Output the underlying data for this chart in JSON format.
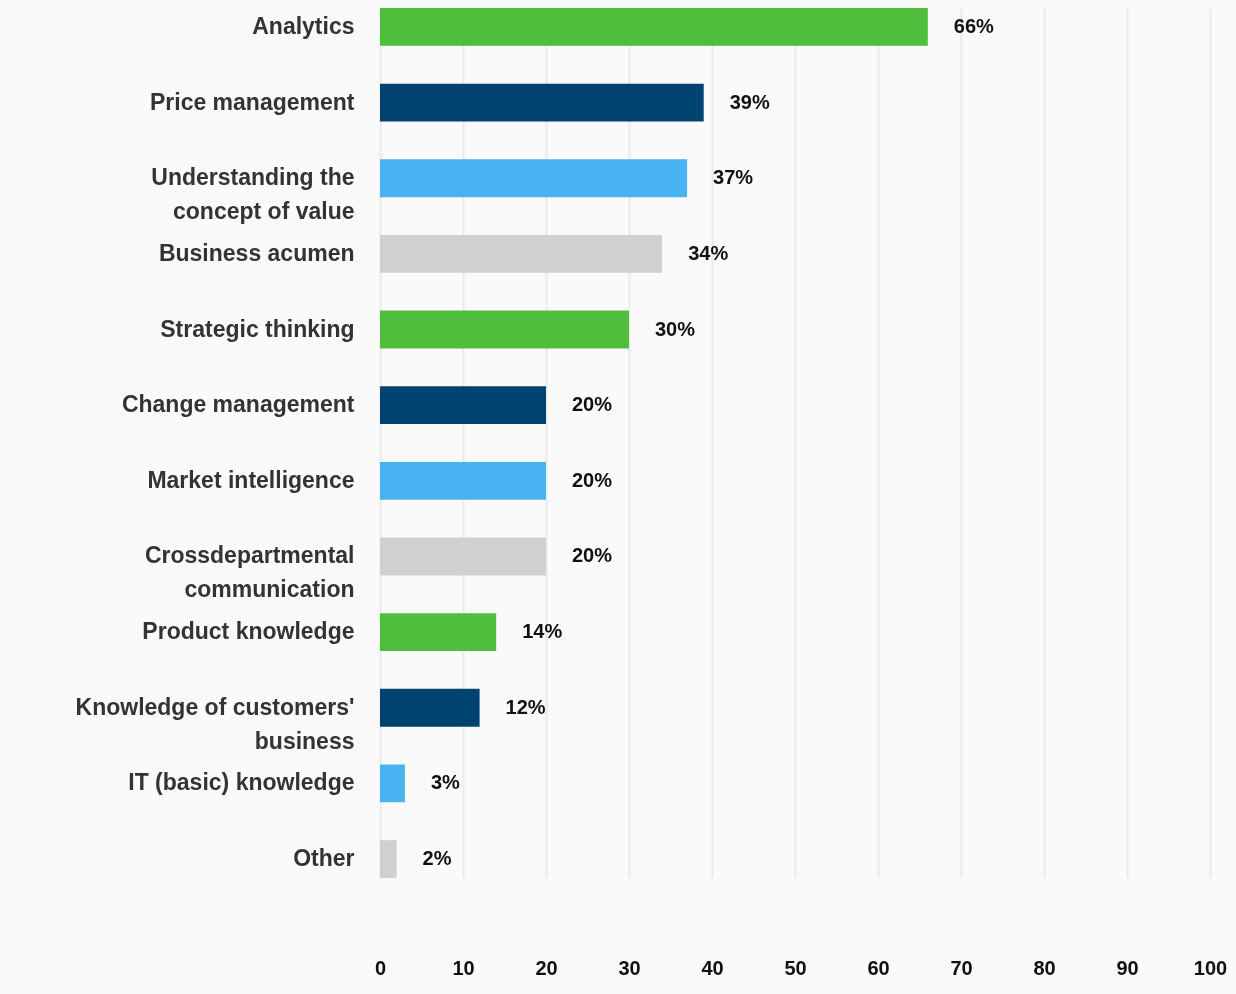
{
  "chart_data": {
    "type": "bar",
    "orientation": "horizontal",
    "categories": [
      "Analytics",
      "Price management",
      "Understanding the concept of value",
      "Business acumen",
      "Strategic thinking",
      "Change management",
      "Market intelligence",
      "Crossdepartmental communication",
      "Product knowledge",
      "Knowledge of customers' business",
      "IT (basic) knowledge",
      "Other"
    ],
    "values": [
      66,
      39,
      37,
      34,
      30,
      20,
      20,
      20,
      14,
      12,
      3,
      2
    ],
    "colors": [
      "#4fbe3c",
      "#004270",
      "#48b3f0",
      "#d0d1cf",
      "#4fbe3c",
      "#004270",
      "#48b3f0",
      "#d0d1cf",
      "#4fbe3c",
      "#004270",
      "#48b3f0",
      "#d0d1cf"
    ],
    "value_labels": [
      "66%",
      "39%",
      "37%",
      "34%",
      "30%",
      "20%",
      "20%",
      "20%",
      "14%",
      "12%",
      "3%",
      "2%"
    ],
    "xlim": [
      0,
      100
    ],
    "xticks": [
      0,
      10,
      20,
      30,
      40,
      50,
      60,
      70,
      80,
      90,
      100
    ],
    "grid": "x"
  }
}
